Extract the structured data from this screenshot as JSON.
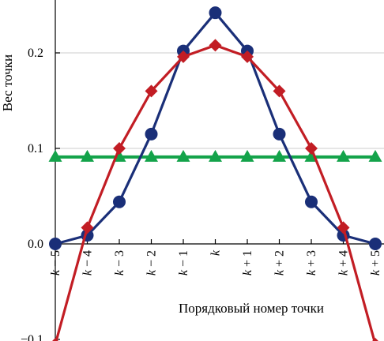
{
  "chart_data": {
    "type": "line",
    "xlabel": "Порядковый номер точки",
    "ylabel": "Вес точки",
    "x_positions": [
      -5,
      -4,
      -3,
      -2,
      -1,
      0,
      1,
      2,
      3,
      4,
      5
    ],
    "x_tick_labels": [
      {
        "main": "k",
        "suffix": "− 5"
      },
      {
        "main": "k",
        "suffix": "− 4"
      },
      {
        "main": "k",
        "suffix": "− 3"
      },
      {
        "main": "k",
        "suffix": "− 2"
      },
      {
        "main": "k",
        "suffix": "− 1"
      },
      {
        "main": "k",
        "suffix": ""
      },
      {
        "main": "k",
        "suffix": "+ 1"
      },
      {
        "main": "k",
        "suffix": "+ 2"
      },
      {
        "main": "k",
        "suffix": "+ 3"
      },
      {
        "main": "k",
        "suffix": "+ 4"
      },
      {
        "main": "k",
        "suffix": "+ 5"
      }
    ],
    "y_ticks": [
      {
        "value": -0.1,
        "label": "−0.1"
      },
      {
        "value": 0.0,
        "label": "0.0"
      },
      {
        "value": 0.1,
        "label": "0.1"
      },
      {
        "value": 0.2,
        "label": "0.2"
      }
    ],
    "ylim": [
      -0.1,
      0.24
    ],
    "xlim": [
      -5,
      5
    ],
    "grid": true,
    "series": [
      {
        "marker": "circle",
        "color": "#1a2f78",
        "values": [
          0.0,
          0.009,
          0.044,
          0.115,
          0.202,
          0.242,
          0.202,
          0.115,
          0.044,
          0.009,
          0.0
        ]
      },
      {
        "marker": "diamond",
        "color": "#c21d24",
        "values": [
          -0.105,
          0.017,
          0.1,
          0.16,
          0.196,
          0.208,
          0.196,
          0.16,
          0.1,
          0.017,
          -0.105
        ]
      },
      {
        "marker": "triangle",
        "color": "#13a34a",
        "values": [
          0.091,
          0.091,
          0.091,
          0.091,
          0.091,
          0.091,
          0.091,
          0.091,
          0.091,
          0.091,
          0.091
        ]
      }
    ]
  }
}
